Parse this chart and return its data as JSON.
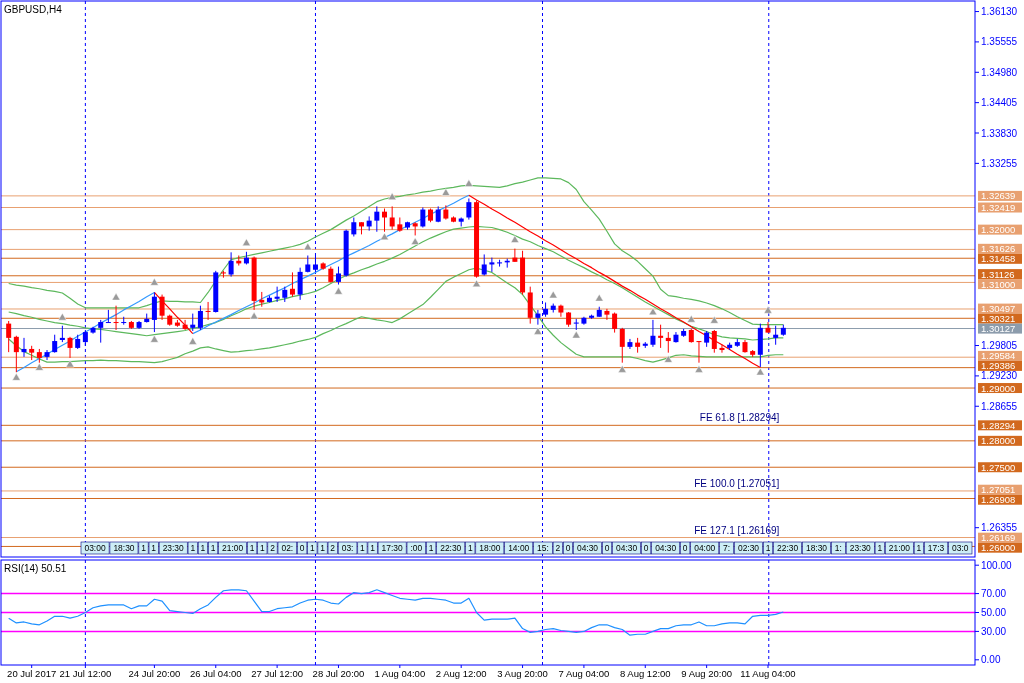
{
  "chart_data": [
    {
      "type": "candlestick",
      "title": "GBPUSD,H4",
      "ylim": [
        1.258,
        1.3633
      ],
      "tick_labels": "y",
      "yticks": [
        {
          "value": 1.3613,
          "label": "1.36130"
        },
        {
          "value": 1.35555,
          "label": "1.35555"
        },
        {
          "value": 1.3498,
          "label": "1.34980"
        },
        {
          "value": 1.34405,
          "label": "1.34405"
        },
        {
          "value": 1.3383,
          "label": "1.33830"
        },
        {
          "value": 1.33255,
          "label": "1.33255"
        },
        {
          "value": 1.29805,
          "label": "1.29805"
        },
        {
          "value": 1.2923,
          "label": "1.29230"
        },
        {
          "value": 1.28655,
          "label": "1.28655"
        },
        {
          "value": 1.26355,
          "label": "1.26355"
        }
      ],
      "categories": [
        null,
        null,
        null,
        null,
        null,
        null,
        null,
        null,
        null,
        null,
        null,
        null,
        null,
        null,
        null,
        null,
        null,
        null,
        null,
        null,
        null,
        null,
        null,
        null,
        null,
        null,
        null,
        null,
        null,
        null,
        null,
        null,
        null,
        null,
        null,
        null,
        null,
        null,
        null,
        null,
        null,
        null,
        null,
        null,
        null,
        null,
        null,
        null,
        null,
        null,
        null,
        null,
        null,
        null,
        null,
        null,
        null,
        null,
        null,
        null,
        null,
        null,
        null,
        null,
        null,
        null,
        null,
        null,
        null,
        null,
        null,
        null,
        null,
        null,
        null,
        null,
        null,
        null,
        null,
        null,
        null,
        null,
        null,
        null,
        null,
        null,
        null,
        null,
        null,
        null,
        null,
        null,
        null,
        null,
        null,
        null,
        null,
        null,
        null,
        null,
        null,
        null
      ],
      "colors": [
        "#ff0000",
        "#ff0000",
        "#0000ff",
        "#ff0000",
        "#ff0000",
        "#0000ff",
        "#0000ff",
        "#0000ff",
        "#ff0000",
        "#0000ff",
        "#0000ff",
        "#0000ff",
        "#0000ff",
        "#0000ff",
        "#ff0000",
        "#0000ff",
        "#ff0000",
        "#0000ff",
        "#0000ff",
        "#0000ff",
        "#ff0000",
        "#ff0000",
        "#ff0000",
        "#ff0000",
        "#0000ff",
        "#0000ff",
        "#ff0000",
        "#0000ff",
        "#ff0000",
        "#0000ff",
        "#ff0000",
        "#0000ff",
        "#ff0000",
        "#ff0000",
        "#0000ff",
        "#0000ff",
        "#0000ff",
        "#ff0000",
        "#0000ff",
        "#0000ff",
        "#0000ff",
        "#ff0000",
        "#ff0000",
        "#0000ff",
        "#0000ff",
        "#0000ff",
        "#ff0000",
        "#0000ff",
        "#0000ff",
        "#ff0000",
        "#ff0000",
        "#ff0000",
        "#0000ff",
        "#ff0000",
        "#0000ff",
        "#ff0000",
        "#0000ff",
        "#ff0000",
        "#ff0000",
        "#0000ff",
        "#0000ff",
        "#ff0000",
        "#0000ff",
        "#0000ff",
        "#0000ff",
        "#0000ff",
        "#ff0000",
        "#ff0000",
        "#ff0000",
        "#0000ff",
        "#0000ff",
        "#0000ff",
        "#ff0000",
        "#ff0000",
        "#0000ff",
        "#0000ff",
        "#0000ff",
        "#0000ff",
        "#ff0000",
        "#ff0000",
        "#ff0000",
        "#0000ff",
        "#ff0000",
        "#0000ff",
        "#0000ff",
        "#ff0000",
        "#ff0000",
        "#0000ff",
        "#0000ff",
        "#ff0000",
        "#ff0000",
        "#0000ff",
        "#ff0000",
        "#ff0000",
        "#0000ff",
        "#0000ff",
        "#ff0000",
        "#ff0000",
        "#0000ff",
        "#ff0000",
        "#0000ff",
        "#0000ff"
      ],
      "ohlc": [
        [
          1.3022,
          1.3027,
          1.2968,
          1.2995
        ],
        [
          1.2997,
          1.2999,
          1.293,
          1.2968
        ],
        [
          1.2968,
          1.2995,
          1.2959,
          1.2974
        ],
        [
          1.2974,
          1.298,
          1.2953,
          1.2967
        ],
        [
          1.2968,
          1.2974,
          1.2948,
          1.2957
        ],
        [
          1.2959,
          1.2972,
          1.2953,
          1.2968
        ],
        [
          1.2968,
          1.3001,
          1.2967,
          1.2989
        ],
        [
          1.2991,
          1.3018,
          1.2987,
          1.2995
        ],
        [
          1.2995,
          1.2997,
          1.2957,
          1.2976
        ],
        [
          1.2976,
          1.3001,
          1.2974,
          1.2993
        ],
        [
          1.2987,
          1.301,
          1.298,
          1.3006
        ],
        [
          1.3005,
          1.3016,
          1.3003,
          1.3014
        ],
        [
          1.3014,
          1.3029,
          1.2986,
          1.3025
        ],
        [
          1.3024,
          1.3048,
          1.3024,
          1.3025
        ],
        [
          1.3025,
          1.3056,
          1.301,
          1.3024
        ],
        [
          1.3024,
          1.3035,
          1.302,
          1.3025
        ],
        [
          1.3025,
          1.3027,
          1.3012,
          1.3014
        ],
        [
          1.3014,
          1.3027,
          1.3012,
          1.3025
        ],
        [
          1.3025,
          1.3041,
          1.3024,
          1.3031
        ],
        [
          1.3029,
          1.3081,
          1.3006,
          1.3073
        ],
        [
          1.3073,
          1.3077,
          1.3029,
          1.3037
        ],
        [
          1.3037,
          1.3039,
          1.3018,
          1.302
        ],
        [
          1.3024,
          1.3029,
          1.3016,
          1.3018
        ],
        [
          1.302,
          1.3029,
          1.301,
          1.3012
        ],
        [
          1.3014,
          1.3041,
          1.3008,
          1.302
        ],
        [
          1.3014,
          1.3056,
          1.301,
          1.3046
        ],
        [
          1.3046,
          1.3063,
          1.3029,
          1.3044
        ],
        [
          1.3044,
          1.3122,
          1.3043,
          1.3119
        ],
        [
          1.3119,
          1.3122,
          1.3109,
          1.3117
        ],
        [
          1.3115,
          1.3157,
          1.3111,
          1.3141
        ],
        [
          1.3141,
          1.3151,
          1.3132,
          1.3136
        ],
        [
          1.3136,
          1.3158,
          1.3134,
          1.3147
        ],
        [
          1.3147,
          1.3149,
          1.3048,
          1.3065
        ],
        [
          1.3067,
          1.3082,
          1.3054,
          1.3062
        ],
        [
          1.3063,
          1.3075,
          1.3062,
          1.3071
        ],
        [
          1.3069,
          1.3092,
          1.3063,
          1.3073
        ],
        [
          1.3071,
          1.3092,
          1.3063,
          1.3086
        ],
        [
          1.3088,
          1.3119,
          1.3073,
          1.3077
        ],
        [
          1.3077,
          1.3128,
          1.3067,
          1.312
        ],
        [
          1.312,
          1.3151,
          1.3119,
          1.3134
        ],
        [
          1.3124,
          1.3151,
          1.312,
          1.3134
        ],
        [
          1.3136,
          1.3138,
          1.3124,
          1.3126
        ],
        [
          1.3126,
          1.313,
          1.31,
          1.3101
        ],
        [
          1.3101,
          1.313,
          1.3096,
          1.3117
        ],
        [
          1.3113,
          1.32,
          1.3111,
          1.3198
        ],
        [
          1.3191,
          1.3223,
          1.3187,
          1.3214
        ],
        [
          1.3214,
          1.3214,
          1.3191,
          1.3206
        ],
        [
          1.3206,
          1.3225,
          1.3198,
          1.3217
        ],
        [
          1.3217,
          1.3244,
          1.3196,
          1.3234
        ],
        [
          1.3234,
          1.324,
          1.3196,
          1.3223
        ],
        [
          1.3223,
          1.3244,
          1.32,
          1.3206
        ],
        [
          1.321,
          1.3223,
          1.3196,
          1.3198
        ],
        [
          1.3204,
          1.3215,
          1.32,
          1.3214
        ],
        [
          1.3212,
          1.3214,
          1.3189,
          1.3206
        ],
        [
          1.3206,
          1.3242,
          1.3204,
          1.3238
        ],
        [
          1.3238,
          1.324,
          1.3214,
          1.3217
        ],
        [
          1.3215,
          1.3244,
          1.3214,
          1.3238
        ],
        [
          1.3238,
          1.3246,
          1.3219,
          1.3221
        ],
        [
          1.3223,
          1.3225,
          1.3214,
          1.3215
        ],
        [
          1.3215,
          1.3223,
          1.3206,
          1.3221
        ],
        [
          1.3223,
          1.3259,
          1.3219,
          1.3252
        ],
        [
          1.3252,
          1.3255,
          1.3109,
          1.3111
        ],
        [
          1.3115,
          1.3153,
          1.3113,
          1.3134
        ],
        [
          1.3134,
          1.3147,
          1.312,
          1.3138
        ],
        [
          1.3136,
          1.3143,
          1.313,
          1.3138
        ],
        [
          1.3138,
          1.3145,
          1.3128,
          1.3141
        ],
        [
          1.3147,
          1.3164,
          1.3139,
          1.3139
        ],
        [
          1.3147,
          1.316,
          1.3077,
          1.3081
        ],
        [
          1.3081,
          1.3092,
          1.3022,
          1.3033
        ],
        [
          1.3033,
          1.3048,
          1.302,
          1.3041
        ],
        [
          1.3039,
          1.3062,
          1.3035,
          1.305
        ],
        [
          1.3048,
          1.306,
          1.3043,
          1.3056
        ],
        [
          1.3056,
          1.3058,
          1.3035,
          1.3043
        ],
        [
          1.3043,
          1.3044,
          1.3016,
          1.302
        ],
        [
          1.3022,
          1.3031,
          1.301,
          1.3024
        ],
        [
          1.3022,
          1.3035,
          1.302,
          1.3033
        ],
        [
          1.3033,
          1.3039,
          1.3031,
          1.3037
        ],
        [
          1.3035,
          1.3054,
          1.3035,
          1.3048
        ],
        [
          1.3046,
          1.305,
          1.3029,
          1.3039
        ],
        [
          1.3041,
          1.3043,
          1.3005,
          1.3012
        ],
        [
          1.3012,
          1.3014,
          1.2948,
          1.2978
        ],
        [
          1.2978,
          1.2993,
          1.2974,
          1.2987
        ],
        [
          1.2986,
          1.2995,
          1.2967,
          1.2978
        ],
        [
          1.298,
          1.2987,
          1.2976,
          1.2984
        ],
        [
          1.2982,
          1.3029,
          1.2978,
          1.2999
        ],
        [
          1.2999,
          1.302,
          1.2976,
          1.2995
        ],
        [
          1.2995,
          1.3006,
          1.2967,
          1.2989
        ],
        [
          1.2987,
          1.3006,
          1.2986,
          1.3001
        ],
        [
          1.2999,
          1.3012,
          1.2997,
          1.3008
        ],
        [
          1.301,
          1.3012,
          1.2986,
          1.2987
        ],
        [
          1.2989,
          1.2989,
          1.2948,
          1.2987
        ],
        [
          1.2986,
          1.3008,
          1.2978,
          1.3005
        ],
        [
          1.3008,
          1.301,
          1.2967,
          1.2974
        ],
        [
          1.2976,
          1.2982,
          1.2967,
          1.2972
        ],
        [
          1.2976,
          1.2986,
          1.2972,
          1.2982
        ],
        [
          1.298,
          1.2993,
          1.2978,
          1.2987
        ],
        [
          1.2987,
          1.2991,
          1.2967,
          1.2968
        ],
        [
          1.297,
          1.2972,
          1.2959,
          1.2963
        ],
        [
          1.2963,
          1.3022,
          1.294,
          1.3014
        ],
        [
          1.3014,
          1.3025,
          1.3005,
          1.3005
        ],
        [
          1.2995,
          1.3018,
          1.2982,
          1.3001
        ],
        [
          1.3001,
          1.302,
          1.2999,
          1.3014
        ]
      ],
      "series": [
        {
          "type": "line",
          "color": "#5cb85c",
          "values": [
            1.3098,
            1.3095,
            1.3093,
            1.309,
            1.3088,
            1.3085,
            1.3083,
            1.308,
            1.307,
            1.3059,
            1.3052,
            1.3052,
            1.3052,
            1.3052,
            1.3052,
            1.3052,
            1.3052,
            1.3052,
            1.3056,
            1.3061,
            1.3065,
            1.3064,
            1.3064,
            1.3063,
            1.3063,
            1.3062,
            1.3081,
            1.3103,
            1.3124,
            1.3143,
            1.3147,
            1.315,
            1.3153,
            1.3156,
            1.3159,
            1.3162,
            1.3165,
            1.3168,
            1.3172,
            1.3178,
            1.3186,
            1.3193,
            1.32,
            1.3209,
            1.3218,
            1.3226,
            1.3235,
            1.3244,
            1.3253,
            1.3258,
            1.3261,
            1.3263,
            1.3266,
            1.3268,
            1.3271,
            1.3273,
            1.3276,
            1.3278,
            1.328,
            1.3283,
            1.3284,
            1.3283,
            1.3282,
            1.3281,
            1.328,
            1.3283,
            1.3287,
            1.329,
            1.3294,
            1.3298,
            1.3298,
            1.3297,
            1.3296,
            1.3289,
            1.3276,
            1.3253,
            1.3237,
            1.322,
            1.3197,
            1.3173,
            1.316,
            1.3151,
            1.314,
            1.3126,
            1.3112,
            1.3087,
            1.3075,
            1.3073,
            1.307,
            1.3068,
            1.3065,
            1.3061,
            1.3056,
            1.305,
            1.3043,
            1.3035,
            1.3028,
            1.3021,
            1.302,
            1.302,
            1.302,
            1.302
          ]
        },
        {
          "type": "line",
          "color": "#5cb85c",
          "values": [
            1.3044,
            1.3041,
            1.3037,
            1.3034,
            1.303,
            1.3027,
            1.3024,
            1.3022,
            1.3019,
            1.3017,
            1.3014,
            1.3012,
            1.3011,
            1.3009,
            1.3007,
            1.3005,
            1.3003,
            1.3001,
            1.2999,
            1.3001,
            1.3003,
            1.3005,
            1.3007,
            1.3009,
            1.3013,
            1.3016,
            1.302,
            1.3024,
            1.303,
            1.3037,
            1.3043,
            1.305,
            1.3055,
            1.3059,
            1.3062,
            1.3066,
            1.3069,
            1.3073,
            1.3076,
            1.3079,
            1.3083,
            1.309,
            1.3098,
            1.3106,
            1.3113,
            1.3118,
            1.3124,
            1.3129,
            1.3135,
            1.314,
            1.3146,
            1.3153,
            1.3161,
            1.3169,
            1.3177,
            1.3184,
            1.319,
            1.3196,
            1.3201,
            1.3203,
            1.3205,
            1.3206,
            1.3205,
            1.3204,
            1.32,
            1.3195,
            1.3189,
            1.3182,
            1.3177,
            1.317,
            1.3164,
            1.3158,
            1.315,
            1.3142,
            1.3135,
            1.3128,
            1.312,
            1.3113,
            1.3105,
            1.3098,
            1.309,
            1.3081,
            1.3072,
            1.3063,
            1.3055,
            1.3047,
            1.3039,
            1.3031,
            1.3024,
            1.3017,
            1.3012,
            1.3007,
            1.3001,
            1.2997,
            1.2995,
            1.2994,
            1.2993,
            1.2991,
            1.2992,
            1.2993,
            1.2995,
            1.2995
          ]
        },
        {
          "type": "line",
          "color": "#5cb85c",
          "values": [
            1.2993,
            1.298,
            1.2969,
            1.2962,
            1.2955,
            1.2949,
            1.2949,
            1.295,
            1.295,
            1.2951,
            1.2952,
            1.2952,
            1.2953,
            1.2952,
            1.2952,
            1.2951,
            1.295,
            1.295,
            1.2949,
            1.2948,
            1.295,
            1.2954,
            1.2958,
            1.2965,
            1.297,
            1.2976,
            1.2978,
            1.2974,
            1.2971,
            1.2968,
            1.2969,
            1.2971,
            1.2972,
            1.2974,
            1.2976,
            1.2979,
            1.2982,
            1.2985,
            1.2989,
            1.2992,
            1.2996,
            1.3003,
            1.3009,
            1.3016,
            1.3022,
            1.3029,
            1.3035,
            1.3032,
            1.3029,
            1.3027,
            1.3024,
            1.3031,
            1.304,
            1.3049,
            1.3058,
            1.3072,
            1.3087,
            1.3102,
            1.311,
            1.3117,
            1.3124,
            1.3127,
            1.3123,
            1.3119,
            1.3109,
            1.3099,
            1.309,
            1.3077,
            1.3057,
            1.3037,
            1.3016,
            1.3,
            1.2986,
            1.2975,
            1.2964,
            1.2959,
            1.2959,
            1.2959,
            1.2959,
            1.2959,
            1.2959,
            1.2959,
            1.2956,
            1.2952,
            1.2949,
            1.2953,
            1.2957,
            1.2962,
            1.2963,
            1.2961,
            1.296,
            1.2959,
            1.2959,
            1.2959,
            1.2959,
            1.2959,
            1.2959,
            1.2959,
            1.2959,
            1.2962,
            1.2963,
            1.2963
          ]
        },
        {
          "type": "line",
          "color": "#3399ff",
          "values": [
            null,
            1.2931,
            1.2939,
            1.2948,
            1.2956,
            1.2964,
            1.2973,
            1.2981,
            1.2989,
            1.2998,
            1.3006,
            1.3014,
            1.3023,
            1.3031,
            1.3039,
            1.3048,
            1.3056,
            1.3064,
            1.3073,
            1.3081,
            null,
            null,
            null,
            null,
            1.3003,
            1.301,
            1.3018,
            1.3025,
            1.3032,
            1.3039,
            1.3047,
            1.3054,
            1.3061,
            1.3069,
            1.3076,
            1.3083,
            1.309,
            1.3098,
            1.3105,
            1.3112,
            1.3119,
            1.3127,
            1.3134,
            1.3141,
            1.3149,
            1.3156,
            1.3163,
            1.317,
            1.3178,
            1.3185,
            1.3192,
            1.32,
            1.3207,
            1.3214,
            1.3221,
            1.3229,
            1.3236,
            1.3243,
            1.325,
            1.3258,
            1.3265,
            null,
            null,
            null,
            null,
            null,
            null,
            null,
            null,
            null,
            null,
            null,
            null,
            null,
            null,
            null,
            null,
            null,
            null,
            null,
            null,
            null,
            null,
            null,
            null,
            null,
            null,
            null,
            null,
            null,
            null,
            null,
            null,
            null,
            null,
            null,
            null,
            null,
            null,
            null,
            null,
            null
          ]
        },
        {
          "type": "line",
          "color": "#ff0000",
          "values": [
            null,
            null,
            null,
            null,
            null,
            null,
            null,
            null,
            null,
            null,
            null,
            null,
            null,
            null,
            null,
            null,
            null,
            null,
            null,
            1.3081,
            1.3065,
            1.305,
            1.3034,
            1.3019,
            1.3003,
            null,
            null,
            null,
            null,
            null,
            null,
            null,
            null,
            null,
            null,
            null,
            null,
            null,
            null,
            null,
            null,
            null,
            null,
            null,
            null,
            null,
            null,
            null,
            null,
            null,
            null,
            null,
            null,
            null,
            null,
            null,
            null,
            null,
            null,
            null,
            1.3265,
            1.3256,
            1.3248,
            1.3239,
            1.3231,
            1.3222,
            1.3214,
            1.3205,
            1.3196,
            1.3188,
            1.3179,
            1.3171,
            1.3162,
            1.3153,
            1.3145,
            1.3136,
            1.3128,
            1.3119,
            1.3111,
            1.3102,
            1.3093,
            1.3085,
            1.3076,
            1.3068,
            1.3059,
            1.305,
            1.3042,
            1.3033,
            1.3025,
            1.3016,
            1.3007,
            1.2999,
            1.299,
            1.2982,
            1.2973,
            1.2964,
            1.2956,
            1.2947,
            1.2939,
            null,
            null,
            null
          ]
        },
        {
          "type": "scatter",
          "color": "#9a9a9a",
          "marker": "triangle",
          "values": [
            null,
            null,
            null,
            null,
            null,
            null,
            null,
            1.3033,
            null,
            null,
            null,
            null,
            null,
            null,
            1.3071,
            null,
            null,
            null,
            null,
            1.3099,
            null,
            null,
            null,
            null,
            null,
            null,
            null,
            null,
            null,
            null,
            null,
            1.3174,
            null,
            null,
            null,
            null,
            null,
            null,
            null,
            1.3166,
            null,
            null,
            null,
            null,
            null,
            null,
            null,
            null,
            null,
            null,
            1.3261,
            null,
            null,
            null,
            null,
            null,
            null,
            1.3269,
            null,
            null,
            1.3286,
            null,
            null,
            null,
            null,
            null,
            1.318,
            null,
            null,
            null,
            null,
            1.3075,
            null,
            null,
            null,
            null,
            null,
            1.3069,
            null,
            null,
            null,
            null,
            null,
            null,
            1.3043,
            null,
            null,
            null,
            null,
            1.3029,
            null,
            null,
            1.3027,
            null,
            null,
            null,
            null,
            null,
            null,
            1.3046,
            null,
            null
          ]
        },
        {
          "type": "scatter",
          "color": "#9a9a9a",
          "marker": "triangle",
          "values": [
            null,
            1.2919,
            null,
            null,
            1.2938,
            null,
            null,
            null,
            1.2944,
            null,
            null,
            null,
            null,
            null,
            null,
            null,
            null,
            null,
            null,
            1.2991,
            null,
            null,
            null,
            null,
            1.2987,
            null,
            null,
            null,
            null,
            null,
            null,
            null,
            1.3035,
            null,
            null,
            null,
            null,
            null,
            null,
            null,
            null,
            null,
            null,
            1.3082,
            null,
            null,
            null,
            null,
            null,
            1.3185,
            null,
            null,
            null,
            1.3176,
            null,
            null,
            null,
            null,
            null,
            null,
            null,
            1.3096,
            null,
            null,
            null,
            null,
            null,
            null,
            null,
            1.3006,
            null,
            null,
            null,
            null,
            1.2999,
            null,
            null,
            null,
            null,
            null,
            1.2934,
            null,
            null,
            null,
            null,
            null,
            1.2953,
            null,
            null,
            null,
            1.2934,
            null,
            null,
            null,
            null,
            null,
            null,
            null,
            1.2929,
            null,
            null,
            null
          ]
        }
      ],
      "ref_lines": [
        {
          "axis": "y",
          "value": 1.32639,
          "label": "1.32639",
          "color": "#e8a070"
        },
        {
          "axis": "y",
          "value": 1.32419,
          "label": "1.32419",
          "color": "#e8a070"
        },
        {
          "axis": "y",
          "value": 1.32,
          "label": "1.32000",
          "color": "#e8a070"
        },
        {
          "axis": "y",
          "value": 1.31626,
          "label": "1.31626",
          "color": "#e8a070"
        },
        {
          "axis": "y",
          "value": 1.31458,
          "label": "1.31458",
          "color": "#d2691e"
        },
        {
          "axis": "y",
          "value": 1.31126,
          "label": "1.31126",
          "color": "#d2691e"
        },
        {
          "axis": "y",
          "value": 1.31,
          "label": "1.31000",
          "color": "#e8a070"
        },
        {
          "axis": "y",
          "value": 1.30497,
          "label": "1.30497",
          "color": "#e8a070"
        },
        {
          "axis": "y",
          "value": 1.30321,
          "label": "1.30321",
          "color": "#d2691e"
        },
        {
          "axis": "y",
          "value": 1.30127,
          "label": "1.30127",
          "color": "#8c9cac"
        },
        {
          "axis": "y",
          "value": 1.29584,
          "label": "1.29584",
          "color": "#e8a070"
        },
        {
          "axis": "y",
          "value": 1.29386,
          "label": "1.29386",
          "color": "#d2691e"
        },
        {
          "axis": "y",
          "value": 1.29,
          "label": "1.29000",
          "color": "#d2691e"
        },
        {
          "axis": "y",
          "value": 1.28294,
          "label": "1.28294",
          "color": "#d2691e"
        },
        {
          "axis": "y",
          "value": 1.28,
          "label": "1.28000",
          "color": "#d2691e"
        },
        {
          "axis": "y",
          "value": 1.275,
          "label": "1.27500",
          "color": "#d2691e"
        },
        {
          "axis": "y",
          "value": 1.27051,
          "label": "1.27051",
          "color": "#e8a070"
        },
        {
          "axis": "y",
          "value": 1.26908,
          "label": "1.26908",
          "color": "#d2691e"
        },
        {
          "axis": "y",
          "value": 1.26169,
          "label": "1.26169",
          "color": "#e8a070"
        },
        {
          "axis": "y",
          "value": 1.26,
          "label": "1.26000",
          "color": "#d2691e"
        }
      ],
      "annotations": [
        {
          "text": "FE 61.8 [1.28294]",
          "y": 1.28294
        },
        {
          "text": "FE 100.0 [1.27051]",
          "y": 1.27051
        },
        {
          "text": "FE 127.1 [1.26169]",
          "y": 1.26169
        },
        "03:00",
        "18:30",
        "1",
        "1",
        "23:30",
        "1",
        "1",
        "1",
        "21:00",
        "1",
        "1",
        "2",
        "02:",
        "0",
        "1",
        "1",
        "2",
        "03:",
        "1",
        "1",
        "17:30",
        ":00",
        "1",
        "22:30",
        "1",
        "18:00",
        "14:00",
        "15:",
        "2",
        "0",
        "04:30",
        "0",
        "04:30",
        "0",
        "04:30",
        "0",
        "04:00",
        "7:",
        "02:30",
        "1",
        "22:30",
        "18:30",
        "1:",
        "23:30",
        "1",
        "21:00",
        "1",
        "17:3",
        "03:0"
      ]
    },
    {
      "type": "line",
      "title": "RSI(14) 50.51",
      "ylim": [
        -5.5,
        105.5
      ],
      "categories": [
        null,
        null,
        null,
        "20 Jul 2017",
        null,
        null,
        null,
        null,
        null,
        null,
        "21 Jul 12:00",
        null,
        null,
        null,
        null,
        null,
        null,
        null,
        null,
        "24 Jul 20:00",
        null,
        null,
        null,
        null,
        null,
        null,
        null,
        "26 Jul 04:00",
        null,
        null,
        null,
        null,
        null,
        null,
        null,
        "27 Jul 12:00",
        null,
        null,
        null,
        null,
        null,
        null,
        null,
        "28 Jul 20:00",
        null,
        null,
        null,
        null,
        null,
        null,
        null,
        "1 Aug 04:00",
        null,
        null,
        null,
        null,
        null,
        null,
        null,
        "2 Aug 12:00",
        null,
        null,
        null,
        null,
        null,
        null,
        null,
        "3 Aug 20:00",
        null,
        null,
        null,
        null,
        null,
        null,
        null,
        "7 Aug 04:00",
        null,
        null,
        null,
        null,
        null,
        null,
        null,
        "8 Aug 12:00",
        null,
        null,
        null,
        null,
        null,
        null,
        null,
        "9 Aug 20:00",
        null,
        null,
        null,
        null,
        null,
        null,
        null,
        "11 Aug 04:00",
        null,
        null
      ],
      "yticks": [
        {
          "value": 100,
          "label": "100.00"
        },
        {
          "value": 70,
          "label": "70.00"
        },
        {
          "value": 50,
          "label": "50.00"
        },
        {
          "value": 30,
          "label": "30.00"
        },
        {
          "value": 0,
          "label": "0.00"
        }
      ],
      "series": [
        {
          "color": "#1e90ff",
          "values": [
            44,
            39,
            40,
            38,
            37,
            41,
            46,
            46,
            44,
            46,
            50,
            55,
            57,
            58,
            58,
            58,
            54,
            57,
            57,
            64,
            62,
            52,
            51,
            50,
            49,
            54,
            58,
            66,
            73,
            74,
            74,
            73,
            62,
            51,
            51,
            54,
            55,
            56,
            60,
            63,
            64,
            63,
            60,
            59,
            66,
            71,
            70,
            71,
            74,
            71,
            68,
            65,
            64,
            63,
            65,
            65,
            64,
            63,
            60,
            60,
            65,
            50,
            42,
            43,
            43,
            43,
            44,
            33,
            29,
            30,
            32,
            33,
            31,
            30,
            29,
            30,
            34,
            37,
            37,
            34,
            32,
            26,
            27,
            27,
            30,
            33,
            33,
            36,
            37,
            37,
            40,
            36,
            36,
            38,
            39,
            39,
            38,
            46,
            47,
            47,
            48,
            50.51
          ]
        }
      ],
      "ref_lines": [
        {
          "axis": "y",
          "value": 70,
          "color": "#ff00ff"
        },
        {
          "axis": "y",
          "value": 50,
          "color": "#ff00ff"
        },
        {
          "axis": "y",
          "value": 30,
          "color": "#ff00ff"
        }
      ]
    }
  ]
}
